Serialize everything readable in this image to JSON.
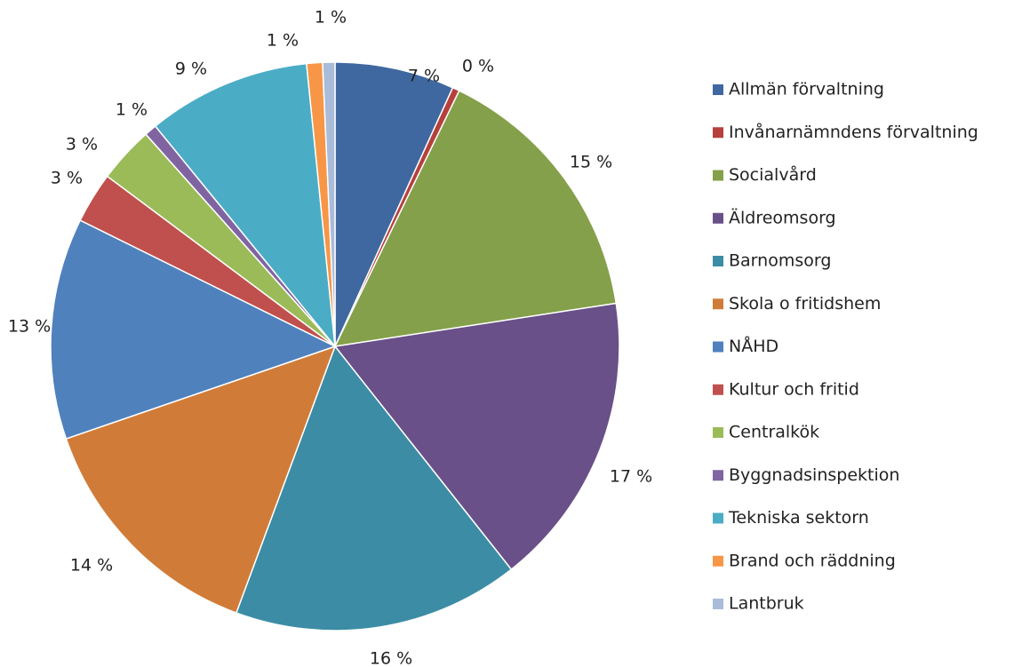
{
  "chart_data": {
    "type": "pie",
    "categories": [
      "Allmän förvaltning",
      "Invånarnämndens förvaltning",
      "Socialvård",
      "Äldreomsorg",
      "Barnomsorg",
      "Skola o fritidshem",
      "NÅHD",
      "Kultur och fritid",
      "Centralkök",
      "Byggnadsinspektion",
      "Tekniska sektorn",
      "Brand och räddning",
      "Lantbruk"
    ],
    "values": [
      6.8,
      0.4,
      15.4,
      16.8,
      16.3,
      14.1,
      12.6,
      2.9,
      3.2,
      0.7,
      9.3,
      0.9,
      0.7
    ],
    "value_labels": [
      "7 %",
      "0 %",
      "15 %",
      "17 %",
      "16 %",
      "14 %",
      "13 %",
      "3 %",
      "3 %",
      "1 %",
      "9 %",
      "1 %",
      "1 %"
    ],
    "colors": [
      "#4068a0",
      "#b5403c",
      "#84a04a",
      "#6a5088",
      "#3c8ca5",
      "#d07c38",
      "#4f81bd",
      "#c0504d",
      "#9bbb59",
      "#8064a2",
      "#4bacc6",
      "#f79646",
      "#a9bcd9"
    ],
    "legend": "right"
  }
}
